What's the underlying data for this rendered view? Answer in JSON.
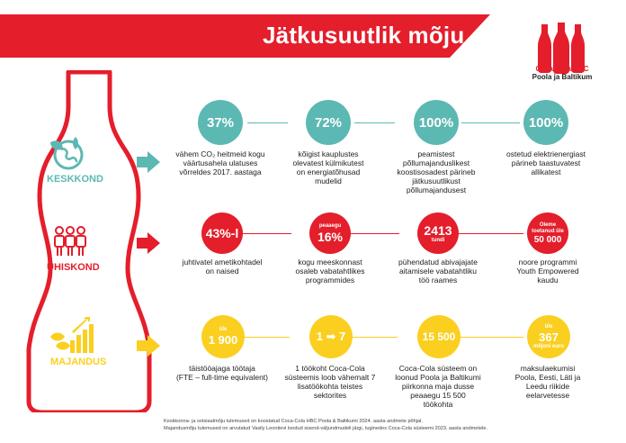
{
  "title": "Jätkusuutlik mõju",
  "logo": {
    "brand": "Coca-Cola HBC",
    "region": "Poola ja Baltikum"
  },
  "colors": {
    "red": "#e41e2b",
    "teal": "#5cb8b2",
    "yellow": "#fbcf1f",
    "banner": "#e41e2b"
  },
  "sections": {
    "environment": {
      "label": "KESKKOND",
      "icon": "globe-leaf-icon",
      "stats": [
        {
          "value": "37%",
          "caption_lines": [
            "vähem CO₂ heitmeid kogu",
            "väärtusahela ulatuses",
            "võrreldes 2017. aastaga"
          ]
        },
        {
          "value": "72%",
          "caption_lines": [
            "kõigist kauplustes",
            "olevatest külmikutest",
            "on energiatõhusad",
            "mudelid"
          ]
        },
        {
          "value": "100%",
          "caption_lines": [
            "peamistest",
            "põllumajanduslikest",
            "koostisosadest pärineb",
            "jätkusuutlikust",
            "põllumajandusest"
          ]
        },
        {
          "value": "100%",
          "caption_lines": [
            "ostetud elektrienergiast",
            "pärineb taastuvatest",
            "allikatest"
          ]
        }
      ]
    },
    "society": {
      "label": "ÜHISKOND",
      "icon": "people-group-icon",
      "stats": [
        {
          "top": "",
          "value": "43%-l",
          "bottom": "",
          "caption_lines": [
            "juhtivatel ametikohtadel",
            "on naised"
          ]
        },
        {
          "top": "peaaegu",
          "value": "16%",
          "bottom": "",
          "caption_lines": [
            "kogu meeskonnast",
            "osaleb vabatahtlikes",
            "programmides"
          ]
        },
        {
          "top": "",
          "value": "2413",
          "bottom": "tundi",
          "caption_lines": [
            "pühendatud abivajajate",
            "aitamisele vabatahtliku",
            "töö raames"
          ]
        },
        {
          "top": "Oleme toetanud üle",
          "value": "50 000",
          "bottom": "",
          "caption_lines": [
            "noore programmi",
            "Youth Empowered",
            "kaudu"
          ]
        }
      ]
    },
    "economy": {
      "label": "MAJANDUS",
      "icon": "growth-chart-icon",
      "stats": [
        {
          "top": "üle",
          "value": "1 900",
          "bottom": "",
          "caption_lines": [
            "täistööajaga töötaja",
            "(FTE – full-time equivalent)"
          ]
        },
        {
          "top": "",
          "value": "1 ➡ 7",
          "bottom": "",
          "caption_lines": [
            "1 töökoht Coca-Cola",
            "süsteemis loob vähemalt 7",
            "lisatöökohta teistes",
            "sektorites"
          ]
        },
        {
          "top": "",
          "value": "15 500",
          "bottom": "",
          "caption_lines": [
            "Coca-Cola süsteem on",
            "loonud Poola ja Baltikumi",
            "piirkonna maja dusse",
            "peaaegu 15 500",
            "töökohta"
          ]
        },
        {
          "top": "üle",
          "value": "367",
          "bottom": "miljoni euro",
          "caption_lines": [
            "maksulaekumisi",
            "Poola, Eesti, Läti ja",
            "Leedu riikide",
            "eelarvetesse"
          ]
        }
      ]
    }
  },
  "footnotes": [
    "Keskkonna- ja sotsiaalmõju tulemused on koostatud Coca-Cola HBC Poola & Baltikumi 2024. aasta andmete põhjal.",
    "Majandusmõju tulemused on arvutatud Vasily Leontievi loodud sisend-väljundmudeli järgi, tuginedes Coca-Cola süsteemi 2023. aasta andmetele."
  ]
}
